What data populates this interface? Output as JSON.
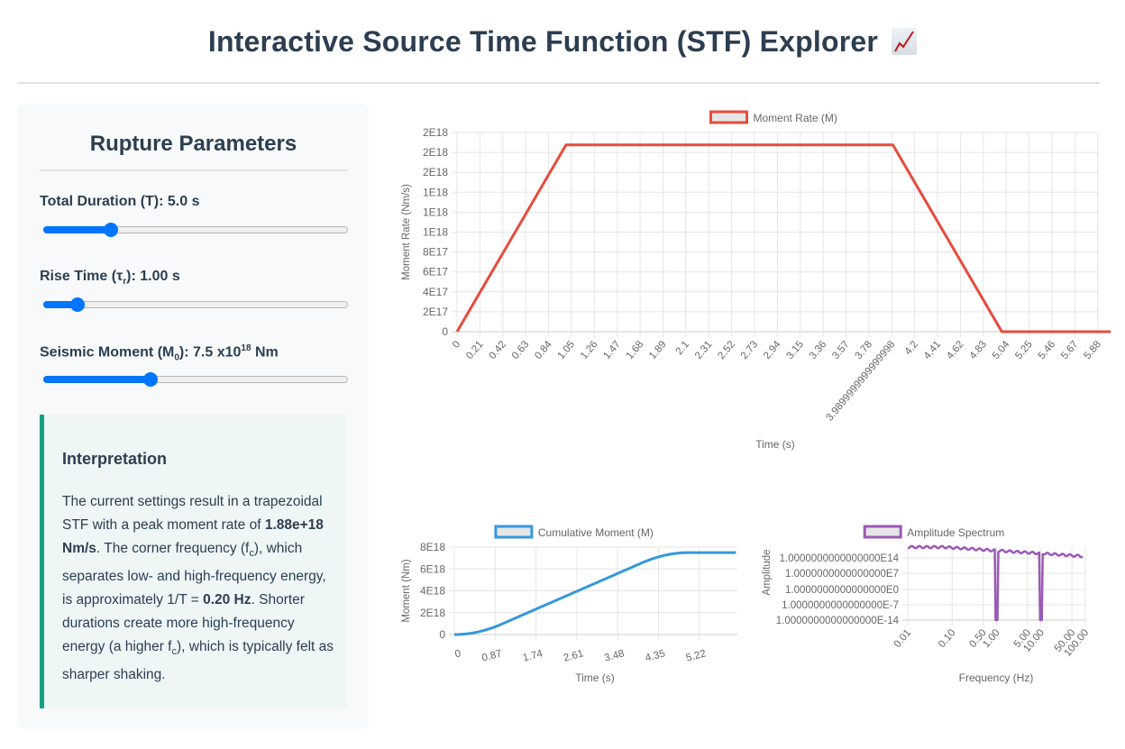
{
  "header": {
    "title": "Interactive Source Time Function (STF) Explorer",
    "title_icon": "chart-increasing-icon"
  },
  "panel": {
    "title": "Rupture Parameters",
    "controls": [
      {
        "label_main": "Total Duration (T): ",
        "value": "5.0 s",
        "slider_pct": 22
      },
      {
        "label_main": "Rise Time (τ",
        "label_sub": "r",
        "label_after": "): ",
        "value": "1.00 s",
        "slider_pct": 11
      },
      {
        "label_main": "Seismic Moment (M",
        "label_sub": "0",
        "label_after": "): ",
        "value_pre": "7.5 x10",
        "value_sup": "18",
        "value_post": " Nm",
        "slider_pct": 35
      }
    ],
    "interpretation": {
      "title": "Interpretation",
      "t1": "The current settings result in a trapezoidal STF with a peak moment rate of ",
      "peak": "1.88e+18 Nm/s",
      "t2": ". The corner frequency (f",
      "sub1": "c",
      "t3": "), which separates low- and high-frequency energy, is approximately 1/T = ",
      "fc": "0.20 Hz",
      "t4": ". Shorter durations create more high-frequency energy (a higher f",
      "sub2": "c",
      "t5": "), which is typically felt as sharper shaking."
    }
  },
  "colors": {
    "moment_rate": "#e74c3c",
    "cumulative": "#3498db",
    "spectrum": "#9b59b6",
    "slider": "#0075ff",
    "accent_border": "#16a085"
  },
  "chart_data": [
    {
      "type": "line",
      "title": "",
      "legend": "Moment Rate (Ṁ)",
      "xlabel": "Time (s)",
      "ylabel": "Moment Rate (Nm/s)",
      "x_ticks": [
        "0",
        "0.21",
        "0.42",
        "0.63",
        "0.84",
        "1.05",
        "1.26",
        "1.47",
        "1.68",
        "1.89",
        "2.1",
        "2.31",
        "2.52",
        "2.73",
        "2.94",
        "3.15",
        "3.36",
        "3.57",
        "3.78",
        "3.9899999999999998",
        "4.2",
        "4.41",
        "4.62",
        "4.83",
        "5.04",
        "5.25",
        "5.46",
        "5.67",
        "5.88"
      ],
      "y_ticks": [
        "0",
        "2E17",
        "4E17",
        "6E17",
        "8E17",
        "1E18",
        "1E18",
        "1E18",
        "2E18",
        "2E18",
        "2E18"
      ],
      "ylim": [
        0,
        2e+18
      ],
      "x": [
        0,
        1.0,
        4.0,
        5.0,
        6.0
      ],
      "values": [
        0,
        1.875e+18,
        1.875e+18,
        0,
        0
      ]
    },
    {
      "type": "line",
      "legend": "Cumulative Moment (M)",
      "xlabel": "Time (s)",
      "ylabel": "Moment (Nm)",
      "x_ticks": [
        "0",
        "0.87",
        "1.74",
        "2.61",
        "3.48",
        "4.35",
        "5.22"
      ],
      "y_ticks": [
        "0",
        "2E18",
        "4E18",
        "6E18",
        "8E18"
      ],
      "ylim": [
        0,
        8e+18
      ],
      "x": [
        0,
        0.5,
        1.0,
        2.0,
        3.0,
        4.0,
        4.5,
        5.0,
        6.0
      ],
      "values": [
        0,
        2.3e+17,
        9.4e+17,
        2.81e+18,
        4.69e+18,
        6.56e+18,
        7.27e+18,
        7.5e+18,
        7.5e+18
      ]
    },
    {
      "type": "line",
      "legend": "Amplitude Spectrum",
      "xlabel": "Frequency (Hz)",
      "ylabel": "Amplitude",
      "x_scale": "log",
      "y_scale": "log",
      "x_ticks": [
        "0.01",
        "0.10",
        "0.50",
        "1.00",
        "5.00",
        "10.00",
        "50.00",
        "100.00"
      ],
      "y_ticks": [
        "1.0000000000000000E-14",
        "1.0000000000000000E-7",
        "1.0000000000000000E0",
        "1.0000000000000000E7",
        "1.0000000000000000E14"
      ],
      "notes": "Flat ~1e18 at low frequency, gently decaying with notches near 1 Hz and 10 Hz dropping below 1e-14"
    }
  ]
}
